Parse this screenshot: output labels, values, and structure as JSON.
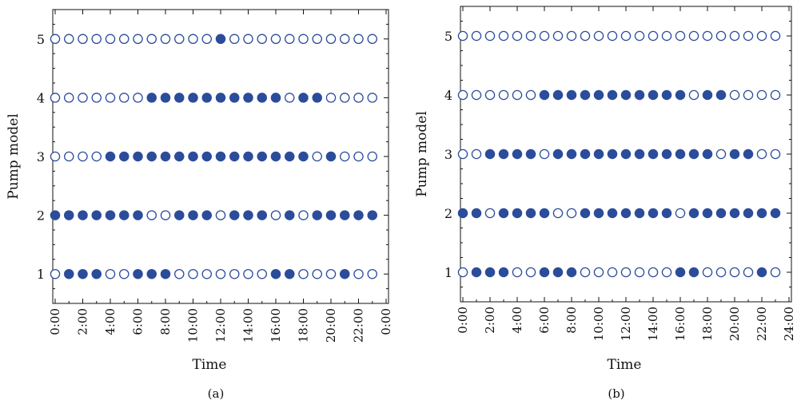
{
  "chart_data": [
    {
      "type": "scatter",
      "panel_label": "(a)",
      "xlabel": "Time",
      "ylabel": "Pump model",
      "xlim": [
        0,
        24
      ],
      "ylim": [
        0.5,
        5.5
      ],
      "x_tick_labels": [
        "0:00",
        "2:00",
        "4:00",
        "6:00",
        "8:00",
        "10:00",
        "12:00",
        "14:00",
        "16:00",
        "18:00",
        "20:00",
        "22:00",
        "0:00"
      ],
      "y_tick_labels": [
        "1",
        "2",
        "3",
        "4",
        "5"
      ],
      "hours": [
        0,
        1,
        2,
        3,
        4,
        5,
        6,
        7,
        8,
        9,
        10,
        11,
        12,
        13,
        14,
        15,
        16,
        17,
        18,
        19,
        20,
        21,
        22,
        23
      ],
      "legend": null,
      "series": [
        {
          "pump": 1,
          "states": [
            0,
            1,
            1,
            1,
            0,
            0,
            1,
            1,
            1,
            0,
            0,
            0,
            0,
            0,
            0,
            0,
            1,
            1,
            0,
            0,
            0,
            1,
            0,
            0
          ]
        },
        {
          "pump": 2,
          "states": [
            1,
            1,
            1,
            1,
            1,
            1,
            1,
            0,
            0,
            1,
            1,
            1,
            0,
            1,
            1,
            1,
            0,
            1,
            0,
            1,
            1,
            1,
            1,
            1
          ]
        },
        {
          "pump": 3,
          "states": [
            0,
            0,
            0,
            0,
            1,
            1,
            1,
            1,
            1,
            1,
            1,
            1,
            1,
            1,
            1,
            1,
            1,
            1,
            1,
            0,
            1,
            0,
            0,
            0
          ]
        },
        {
          "pump": 4,
          "states": [
            0,
            0,
            0,
            0,
            0,
            0,
            0,
            1,
            1,
            1,
            1,
            1,
            1,
            1,
            1,
            1,
            1,
            0,
            1,
            1,
            0,
            0,
            0,
            0
          ]
        },
        {
          "pump": 5,
          "states": [
            0,
            0,
            0,
            0,
            0,
            0,
            0,
            0,
            0,
            0,
            0,
            0,
            1,
            0,
            0,
            0,
            0,
            0,
            0,
            0,
            0,
            0,
            0,
            0
          ]
        }
      ]
    },
    {
      "type": "scatter",
      "panel_label": "(b)",
      "xlabel": "Time",
      "ylabel": "Pump model",
      "xlim": [
        0,
        24
      ],
      "ylim": [
        0.5,
        5.5
      ],
      "x_tick_labels": [
        "0:00",
        "2:00",
        "4:00",
        "6:00",
        "8:00",
        "10:00",
        "12:00",
        "14:00",
        "16:00",
        "18:00",
        "20:00",
        "22:00",
        "24:00"
      ],
      "y_tick_labels": [
        "1",
        "2",
        "3",
        "4",
        "5"
      ],
      "hours": [
        0,
        1,
        2,
        3,
        4,
        5,
        6,
        7,
        8,
        9,
        10,
        11,
        12,
        13,
        14,
        15,
        16,
        17,
        18,
        19,
        20,
        21,
        22,
        23
      ],
      "legend": null,
      "series": [
        {
          "pump": 1,
          "states": [
            0,
            1,
            1,
            1,
            0,
            0,
            1,
            1,
            1,
            0,
            0,
            0,
            0,
            0,
            0,
            0,
            1,
            1,
            0,
            0,
            0,
            0,
            1,
            0
          ]
        },
        {
          "pump": 2,
          "states": [
            1,
            1,
            0,
            1,
            1,
            1,
            1,
            0,
            0,
            1,
            1,
            1,
            1,
            1,
            1,
            1,
            0,
            1,
            1,
            1,
            1,
            1,
            1,
            1
          ]
        },
        {
          "pump": 3,
          "states": [
            0,
            0,
            1,
            1,
            1,
            1,
            0,
            1,
            1,
            1,
            1,
            1,
            1,
            1,
            1,
            1,
            1,
            1,
            1,
            0,
            1,
            1,
            0,
            0
          ]
        },
        {
          "pump": 4,
          "states": [
            0,
            0,
            0,
            0,
            0,
            0,
            1,
            1,
            1,
            1,
            1,
            1,
            1,
            1,
            1,
            1,
            1,
            0,
            1,
            1,
            0,
            0,
            0,
            0
          ]
        },
        {
          "pump": 5,
          "states": [
            0,
            0,
            0,
            0,
            0,
            0,
            0,
            0,
            0,
            0,
            0,
            0,
            0,
            0,
            0,
            0,
            0,
            0,
            0,
            0,
            0,
            0,
            0,
            0
          ]
        }
      ]
    }
  ],
  "colors": {
    "marker": "#2b4c9b",
    "axis": "#111111"
  }
}
